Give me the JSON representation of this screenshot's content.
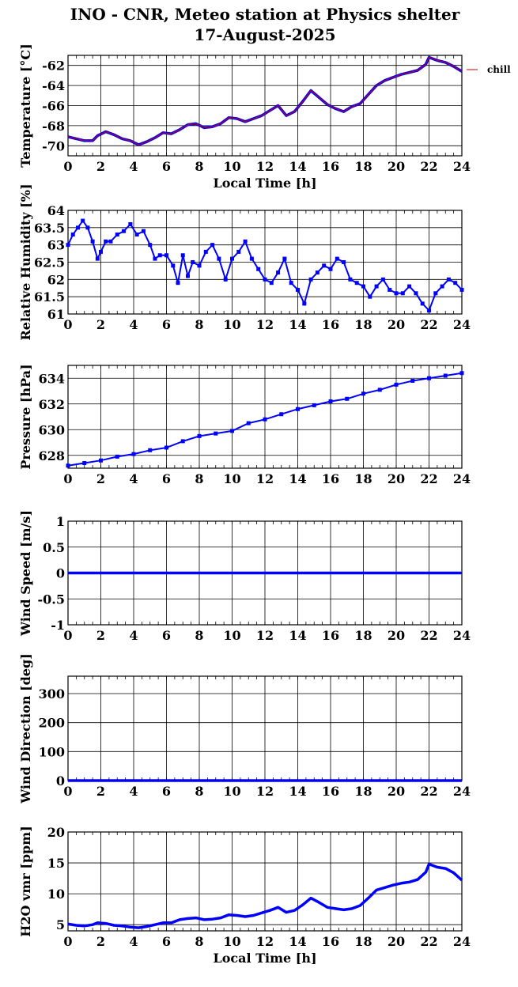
{
  "figure": {
    "title_line1": "INO - CNR, Meteo station at Physics shelter",
    "title_line2": "17-August-2025",
    "xlabel": "Local Time [h]",
    "legend_label": "chill"
  },
  "colors": {
    "series": "#0000ff",
    "chill": "#cc0000",
    "grid": "#000000",
    "frame": "#000000"
  },
  "chart_data": [
    {
      "type": "line",
      "ylabel": "Temperature [°C]",
      "xlim": [
        0,
        24
      ],
      "ylim": [
        -71,
        -61
      ],
      "xticks": [
        0,
        2,
        4,
        6,
        8,
        10,
        12,
        14,
        16,
        18,
        20,
        22,
        24
      ],
      "yticks": [
        -70,
        -68,
        -66,
        -64,
        -62
      ],
      "grid": true,
      "legend": "right-outside",
      "show_xlabel": true,
      "series": [
        {
          "name": "",
          "color": "#0000ff",
          "x": [
            0,
            0.5,
            1,
            1.5,
            1.8,
            2.3,
            2.8,
            3.3,
            3.8,
            4.3,
            4.8,
            5.3,
            5.8,
            6.3,
            6.8,
            7.3,
            7.8,
            8.3,
            8.8,
            9.3,
            9.8,
            10.3,
            10.8,
            11.3,
            11.8,
            12.3,
            12.8,
            13.3,
            13.8,
            14.3,
            14.8,
            15.3,
            15.8,
            16.3,
            16.8,
            17.3,
            17.8,
            18.3,
            18.8,
            19.3,
            19.8,
            20.3,
            20.8,
            21.3,
            21.8,
            22,
            22.5,
            23,
            23.5,
            24
          ],
          "y": [
            -69.1,
            -69.3,
            -69.5,
            -69.5,
            -69.0,
            -68.6,
            -68.9,
            -69.3,
            -69.5,
            -69.9,
            -69.6,
            -69.2,
            -68.7,
            -68.8,
            -68.4,
            -67.9,
            -67.8,
            -68.2,
            -68.1,
            -67.8,
            -67.2,
            -67.3,
            -67.6,
            -67.3,
            -67.0,
            -66.5,
            -66.0,
            -67.0,
            -66.6,
            -65.6,
            -64.5,
            -65.2,
            -65.9,
            -66.3,
            -66.6,
            -66.1,
            -65.8,
            -64.9,
            -64.0,
            -63.5,
            -63.2,
            -62.9,
            -62.7,
            -62.5,
            -61.9,
            -61.2,
            -61.5,
            -61.7,
            -62.1,
            -62.6
          ]
        }
      ]
    },
    {
      "type": "scatter",
      "ylabel": "Relative Humidity [%]",
      "xlim": [
        0,
        24
      ],
      "ylim": [
        61,
        64
      ],
      "xticks": [
        0,
        2,
        4,
        6,
        8,
        10,
        12,
        14,
        16,
        18,
        20,
        22,
        24
      ],
      "yticks": [
        61,
        61.5,
        62,
        62.5,
        63,
        63.5,
        64
      ],
      "grid": true,
      "show_xlabel": false,
      "series": [
        {
          "name": "",
          "color": "#0000ff",
          "x": [
            0,
            0.3,
            0.6,
            0.9,
            1.2,
            1.5,
            1.8,
            2.0,
            2.3,
            2.6,
            3.0,
            3.4,
            3.8,
            4.2,
            4.6,
            5.0,
            5.3,
            5.6,
            6.0,
            6.4,
            6.7,
            7.0,
            7.3,
            7.6,
            8.0,
            8.4,
            8.8,
            9.2,
            9.6,
            10.0,
            10.4,
            10.8,
            11.2,
            11.6,
            12.0,
            12.4,
            12.8,
            13.2,
            13.6,
            14.0,
            14.4,
            14.8,
            15.2,
            15.6,
            16.0,
            16.4,
            16.8,
            17.2,
            17.6,
            18.0,
            18.4,
            18.8,
            19.2,
            19.6,
            20.0,
            20.4,
            20.8,
            21.2,
            21.6,
            22.0,
            22.4,
            22.8,
            23.2,
            23.6,
            24.0
          ],
          "y": [
            63.0,
            63.3,
            63.5,
            63.7,
            63.5,
            63.1,
            62.6,
            62.8,
            63.1,
            63.1,
            63.3,
            63.4,
            63.6,
            63.3,
            63.4,
            63.0,
            62.6,
            62.7,
            62.7,
            62.4,
            61.9,
            62.7,
            62.1,
            62.5,
            62.4,
            62.8,
            63.0,
            62.6,
            62.0,
            62.6,
            62.8,
            63.1,
            62.6,
            62.3,
            62.0,
            61.9,
            62.2,
            62.6,
            61.9,
            61.7,
            61.3,
            62.0,
            62.2,
            62.4,
            62.3,
            62.6,
            62.5,
            62.0,
            61.9,
            61.8,
            61.5,
            61.8,
            62.0,
            61.7,
            61.6,
            61.6,
            61.8,
            61.6,
            61.3,
            61.1,
            61.6,
            61.8,
            62.0,
            61.9,
            61.7
          ]
        }
      ]
    },
    {
      "type": "scatter",
      "ylabel": "Pressure [hPa]",
      "xlim": [
        0,
        24
      ],
      "ylim": [
        627,
        635
      ],
      "xticks": [
        0,
        2,
        4,
        6,
        8,
        10,
        12,
        14,
        16,
        18,
        20,
        22,
        24
      ],
      "yticks": [
        628,
        630,
        632,
        634
      ],
      "grid": true,
      "show_xlabel": false,
      "series": [
        {
          "name": "",
          "color": "#0000ff",
          "x": [
            0,
            1,
            2,
            3,
            4,
            5,
            6,
            7,
            8,
            9,
            10,
            11,
            12,
            13,
            14,
            15,
            16,
            17,
            18,
            19,
            20,
            21,
            22,
            23,
            24
          ],
          "y": [
            627.2,
            627.4,
            627.6,
            627.9,
            628.1,
            628.4,
            628.6,
            629.1,
            629.5,
            629.7,
            629.9,
            630.5,
            630.8,
            631.2,
            631.6,
            631.9,
            632.2,
            632.4,
            632.8,
            633.1,
            633.5,
            633.8,
            634.0,
            634.2,
            634.4
          ]
        }
      ]
    },
    {
      "type": "line",
      "ylabel": "Wind Speed [m/s]",
      "xlim": [
        0,
        24
      ],
      "ylim": [
        -1,
        1
      ],
      "xticks": [
        0,
        2,
        4,
        6,
        8,
        10,
        12,
        14,
        16,
        18,
        20,
        22,
        24
      ],
      "yticks": [
        -1,
        -0.5,
        0,
        0.5,
        1
      ],
      "grid": true,
      "show_xlabel": false,
      "series": [
        {
          "name": "",
          "color": "#0000ff",
          "x": [
            0,
            24
          ],
          "y": [
            0,
            0
          ]
        }
      ]
    },
    {
      "type": "line",
      "ylabel": "Wind Direction [deg]",
      "xlim": [
        0,
        24
      ],
      "ylim": [
        0,
        360
      ],
      "xticks": [
        0,
        2,
        4,
        6,
        8,
        10,
        12,
        14,
        16,
        18,
        20,
        22,
        24
      ],
      "yticks": [
        0,
        100,
        200,
        300
      ],
      "grid": true,
      "show_xlabel": false,
      "series": [
        {
          "name": "",
          "color": "#0000ff",
          "x": [
            0,
            24
          ],
          "y": [
            0,
            0
          ]
        }
      ]
    },
    {
      "type": "line",
      "ylabel": "H2O vmr [ppm]",
      "xlim": [
        0,
        24
      ],
      "ylim": [
        4,
        20
      ],
      "xticks": [
        0,
        2,
        4,
        6,
        8,
        10,
        12,
        14,
        16,
        18,
        20,
        22,
        24
      ],
      "yticks": [
        5,
        10,
        15,
        20
      ],
      "grid": true,
      "show_xlabel": true,
      "series": [
        {
          "name": "",
          "color": "#0000ff",
          "x": [
            0,
            0.5,
            1,
            1.5,
            1.8,
            2.3,
            2.8,
            3.3,
            3.8,
            4.3,
            4.8,
            5.3,
            5.8,
            6.3,
            6.8,
            7.3,
            7.8,
            8.3,
            8.8,
            9.3,
            9.8,
            10.3,
            10.8,
            11.3,
            11.8,
            12.3,
            12.8,
            13.3,
            13.8,
            14.3,
            14.8,
            15.3,
            15.8,
            16.3,
            16.8,
            17.3,
            17.8,
            18.3,
            18.8,
            19.3,
            19.8,
            20.3,
            20.8,
            21.3,
            21.8,
            22,
            22.5,
            23,
            23.5,
            24
          ],
          "y": [
            5.1,
            4.9,
            4.8,
            5.0,
            5.3,
            5.2,
            4.9,
            4.8,
            4.6,
            4.5,
            4.7,
            5.0,
            5.3,
            5.3,
            5.8,
            6.0,
            6.1,
            5.8,
            5.9,
            6.1,
            6.6,
            6.5,
            6.3,
            6.5,
            6.9,
            7.3,
            7.8,
            7.0,
            7.3,
            8.2,
            9.3,
            8.6,
            7.8,
            7.6,
            7.4,
            7.6,
            8.1,
            9.3,
            10.6,
            11.0,
            11.4,
            11.7,
            11.9,
            12.3,
            13.5,
            14.8,
            14.3,
            14.1,
            13.4,
            12.2
          ]
        }
      ]
    }
  ]
}
